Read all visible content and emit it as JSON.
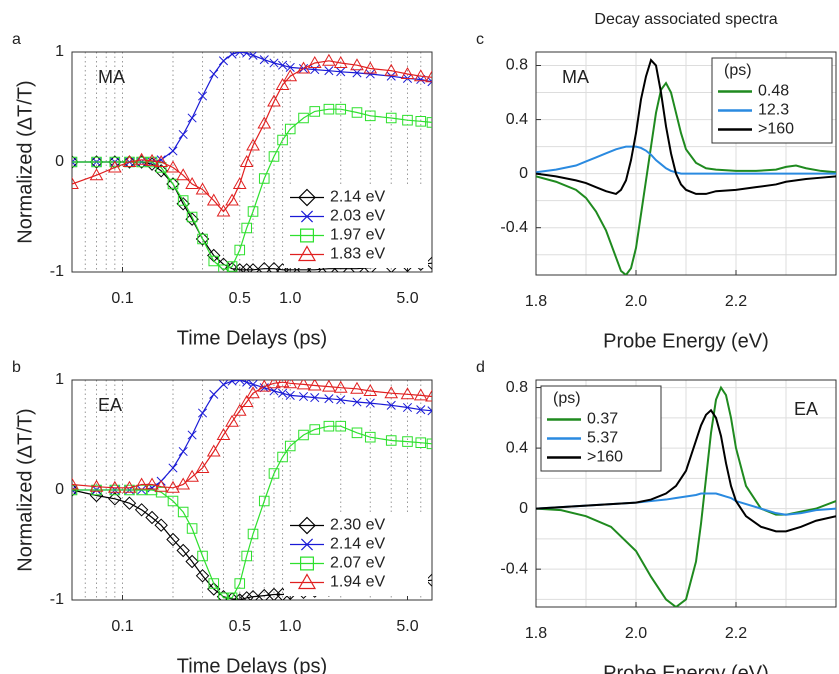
{
  "chart_data": [
    {
      "panel": "a",
      "type": "line",
      "annotation": "MA",
      "xlabel": "Time Delays (ps)",
      "ylabel": "Normalized (ΔT/T)",
      "xscale": "log",
      "xlim": [
        0.05,
        7
      ],
      "ylim": [
        -1,
        1
      ],
      "xticks": [
        0.1,
        0.5,
        {
          "value": 1,
          "label": "1.0"
        },
        {
          "value": 5,
          "label": "5.0"
        }
      ],
      "xminorticks": [
        0.06,
        0.07,
        0.08,
        0.09,
        0.2,
        0.3,
        0.4,
        0.6,
        0.7,
        0.8,
        0.9,
        2,
        3,
        4,
        6,
        7
      ],
      "yticks": [
        -1,
        0,
        1
      ],
      "xgrid": true,
      "ygrid": false,
      "grid_style": "dotted",
      "legend": "lower right",
      "x": [
        0.05,
        0.07,
        0.09,
        0.11,
        0.13,
        0.15,
        0.17,
        0.2,
        0.23,
        0.26,
        0.3,
        0.35,
        0.4,
        0.45,
        0.5,
        0.55,
        0.6,
        0.7,
        0.8,
        0.9,
        1.0,
        1.2,
        1.4,
        1.7,
        2.0,
        2.5,
        3,
        4,
        5,
        6,
        7
      ],
      "series": [
        {
          "name": "2.14 eV",
          "color": "#000000",
          "marker": "diamond",
          "values": [
            0,
            0,
            0,
            0,
            0,
            -0.02,
            -0.08,
            -0.2,
            -0.38,
            -0.52,
            -0.7,
            -0.85,
            -0.93,
            -0.97,
            -0.98,
            -0.98,
            -0.98,
            -0.97,
            -0.97,
            -0.98,
            -0.98,
            -0.98,
            -0.98,
            -0.97,
            -0.97,
            -0.97,
            -0.96,
            -0.95,
            -0.94,
            -0.93,
            -0.92
          ]
        },
        {
          "name": "2.03 eV",
          "color": "#1a1ad6",
          "marker": "x",
          "values": [
            0,
            0,
            0,
            0,
            0,
            0,
            0.02,
            0.1,
            0.25,
            0.4,
            0.6,
            0.8,
            0.92,
            0.98,
            1.0,
            0.99,
            0.97,
            0.93,
            0.9,
            0.88,
            0.86,
            0.85,
            0.84,
            0.83,
            0.82,
            0.81,
            0.8,
            0.78,
            0.76,
            0.75,
            0.73
          ]
        },
        {
          "name": "1.97 eV",
          "color": "#2ee02e",
          "marker": "square",
          "values": [
            0,
            0,
            0,
            0,
            0,
            0,
            -0.05,
            -0.2,
            -0.35,
            -0.5,
            -0.7,
            -0.9,
            -0.98,
            -0.95,
            -0.8,
            -0.6,
            -0.45,
            -0.15,
            0.05,
            0.2,
            0.3,
            0.4,
            0.46,
            0.48,
            0.48,
            0.45,
            0.42,
            0.4,
            0.38,
            0.37,
            0.36
          ]
        },
        {
          "name": "1.83 eV",
          "color": "#e02020",
          "marker": "triangle",
          "values": [
            -0.2,
            -0.12,
            -0.05,
            0,
            0.02,
            0.01,
            0,
            -0.05,
            -0.12,
            -0.2,
            -0.25,
            -0.35,
            -0.45,
            -0.35,
            -0.2,
            0,
            0.15,
            0.35,
            0.55,
            0.7,
            0.78,
            0.85,
            0.9,
            0.92,
            0.9,
            0.88,
            0.85,
            0.83,
            0.8,
            0.78,
            0.77
          ]
        }
      ]
    },
    {
      "panel": "b",
      "type": "line",
      "annotation": "EA",
      "xlabel": "Time Delays (ps)",
      "ylabel": "Normalized (ΔT/T)",
      "xscale": "log",
      "xlim": [
        0.05,
        7
      ],
      "ylim": [
        -1,
        1
      ],
      "xticks": [
        0.1,
        0.5,
        {
          "value": 1,
          "label": "1.0"
        },
        {
          "value": 5,
          "label": "5.0"
        }
      ],
      "xminorticks": [
        0.06,
        0.07,
        0.08,
        0.09,
        0.2,
        0.3,
        0.4,
        0.6,
        0.7,
        0.8,
        0.9,
        2,
        3,
        4,
        6,
        7
      ],
      "yticks": [
        -1,
        0,
        1
      ],
      "xgrid": true,
      "ygrid": false,
      "grid_style": "dotted",
      "legend": "lower right",
      "x": [
        0.05,
        0.07,
        0.09,
        0.11,
        0.13,
        0.15,
        0.17,
        0.2,
        0.23,
        0.26,
        0.3,
        0.35,
        0.4,
        0.45,
        0.5,
        0.55,
        0.6,
        0.7,
        0.8,
        0.9,
        1.0,
        1.2,
        1.4,
        1.7,
        2.0,
        2.5,
        3,
        4,
        5,
        6,
        7
      ],
      "series": [
        {
          "name": "2.30 eV",
          "color": "#000000",
          "marker": "diamond",
          "values": [
            0,
            -0.05,
            -0.08,
            -0.12,
            -0.18,
            -0.25,
            -0.32,
            -0.45,
            -0.55,
            -0.65,
            -0.78,
            -0.9,
            -0.97,
            -0.99,
            -1,
            -0.98,
            -0.97,
            -0.96,
            -0.95,
            -0.95,
            -0.94,
            -0.93,
            -0.92,
            -0.91,
            -0.9,
            -0.89,
            -0.88,
            -0.86,
            -0.84,
            -0.83,
            -0.82
          ]
        },
        {
          "name": "2.14 eV",
          "color": "#1a1ad6",
          "marker": "x",
          "values": [
            0,
            0,
            0,
            0,
            0,
            0.02,
            0.08,
            0.2,
            0.35,
            0.5,
            0.7,
            0.87,
            0.96,
            0.99,
            1,
            0.98,
            0.96,
            0.93,
            0.9,
            0.88,
            0.86,
            0.85,
            0.84,
            0.83,
            0.82,
            0.8,
            0.79,
            0.77,
            0.75,
            0.73,
            0.72
          ]
        },
        {
          "name": "2.07 eV",
          "color": "#2ee02e",
          "marker": "square",
          "values": [
            0,
            0,
            0,
            0,
            0,
            0,
            -0.02,
            -0.1,
            -0.2,
            -0.35,
            -0.6,
            -0.85,
            -0.98,
            -0.98,
            -0.85,
            -0.6,
            -0.4,
            -0.1,
            0.15,
            0.3,
            0.4,
            0.5,
            0.55,
            0.58,
            0.58,
            0.52,
            0.48,
            0.45,
            0.44,
            0.43,
            0.42
          ]
        },
        {
          "name": "1.94 eV",
          "color": "#e02020",
          "marker": "triangle",
          "values": [
            0.05,
            0.03,
            0.02,
            0.02,
            0.05,
            0.05,
            0.03,
            0.02,
            0.05,
            0.12,
            0.2,
            0.35,
            0.5,
            0.62,
            0.72,
            0.8,
            0.88,
            0.94,
            0.97,
            0.98,
            0.97,
            0.96,
            0.95,
            0.94,
            0.93,
            0.92,
            0.9,
            0.88,
            0.87,
            0.86,
            0.85
          ]
        }
      ]
    },
    {
      "panel": "c",
      "type": "line",
      "title": "Decay associated spectra",
      "annotation": "MA",
      "xlabel": "Probe Energy (eV)",
      "xlim": [
        1.8,
        2.4
      ],
      "ylim": [
        -0.75,
        0.9
      ],
      "xticks": [
        1.8,
        {
          "value": 2,
          "label": "2.0"
        },
        2.2
      ],
      "xminorticks": [
        1.9,
        2.1,
        2.3
      ],
      "yticks": [
        -0.4,
        0,
        0.4,
        0.8
      ],
      "yminorticks": [
        -0.6,
        -0.2,
        0.2,
        0.6
      ],
      "xgrid": true,
      "ygrid": true,
      "grid_style": "solid",
      "legend": "upper right",
      "legend_title": "(ps)",
      "x": [
        1.8,
        1.84,
        1.88,
        1.9,
        1.92,
        1.94,
        1.96,
        1.97,
        1.98,
        1.99,
        2.0,
        2.01,
        2.02,
        2.03,
        2.04,
        2.05,
        2.06,
        2.07,
        2.08,
        2.09,
        2.1,
        2.12,
        2.14,
        2.16,
        2.2,
        2.24,
        2.28,
        2.3,
        2.32,
        2.34,
        2.37,
        2.4
      ],
      "series": [
        {
          "name": "0.48",
          "color": "#1f8a1f",
          "values": [
            -0.02,
            -0.06,
            -0.12,
            -0.18,
            -0.28,
            -0.42,
            -0.62,
            -0.72,
            -0.75,
            -0.7,
            -0.55,
            -0.3,
            -0.05,
            0.2,
            0.45,
            0.62,
            0.67,
            0.6,
            0.45,
            0.3,
            0.18,
            0.08,
            0.04,
            0.03,
            0.02,
            0.02,
            0.03,
            0.05,
            0.06,
            0.04,
            0.02,
            0.01
          ]
        },
        {
          "name": "12.3",
          "color": "#2a8ae0",
          "values": [
            0.01,
            0.03,
            0.06,
            0.09,
            0.12,
            0.15,
            0.18,
            0.19,
            0.2,
            0.2,
            0.2,
            0.19,
            0.17,
            0.14,
            0.1,
            0.07,
            0.04,
            0.02,
            0.01,
            0,
            0,
            0,
            0,
            0,
            0,
            0,
            0,
            0,
            0,
            0,
            0,
            0
          ]
        },
        {
          "name": ">160",
          "color": "#000000",
          "values": [
            0,
            -0.02,
            -0.05,
            -0.07,
            -0.1,
            -0.13,
            -0.15,
            -0.12,
            -0.05,
            0.1,
            0.3,
            0.55,
            0.72,
            0.84,
            0.8,
            0.6,
            0.35,
            0.15,
            0,
            -0.08,
            -0.12,
            -0.15,
            -0.15,
            -0.13,
            -0.12,
            -0.1,
            -0.08,
            -0.06,
            -0.05,
            -0.04,
            -0.03,
            -0.02
          ]
        }
      ]
    },
    {
      "panel": "d",
      "type": "line",
      "annotation": "EA",
      "xlabel": "Probe Energy (eV)",
      "xlim": [
        1.8,
        2.4
      ],
      "ylim": [
        -0.65,
        0.85
      ],
      "xticks": [
        1.8,
        {
          "value": 2,
          "label": "2.0"
        },
        2.2
      ],
      "xminorticks": [
        1.9,
        2.1,
        2.3
      ],
      "yticks": [
        -0.4,
        0,
        0.4,
        0.8
      ],
      "yminorticks": [
        -0.6,
        -0.2,
        0.2,
        0.6
      ],
      "xgrid": true,
      "ygrid": true,
      "grid_style": "solid",
      "legend": "upper left",
      "legend_title": "(ps)",
      "x": [
        1.8,
        1.85,
        1.9,
        1.95,
        2.0,
        2.03,
        2.06,
        2.08,
        2.1,
        2.12,
        2.13,
        2.14,
        2.15,
        2.16,
        2.17,
        2.18,
        2.19,
        2.2,
        2.22,
        2.25,
        2.28,
        2.3,
        2.33,
        2.36,
        2.4
      ],
      "series": [
        {
          "name": "0.37",
          "color": "#1f8a1f",
          "values": [
            0,
            -0.01,
            -0.05,
            -0.12,
            -0.28,
            -0.45,
            -0.6,
            -0.65,
            -0.6,
            -0.35,
            -0.1,
            0.2,
            0.5,
            0.72,
            0.8,
            0.75,
            0.6,
            0.4,
            0.15,
            0,
            -0.04,
            -0.04,
            -0.02,
            0,
            0.05
          ]
        },
        {
          "name": "5.37",
          "color": "#2a8ae0",
          "values": [
            0,
            0.01,
            0.02,
            0.03,
            0.04,
            0.05,
            0.06,
            0.07,
            0.08,
            0.09,
            0.1,
            0.1,
            0.1,
            0.1,
            0.09,
            0.08,
            0.07,
            0.05,
            0.03,
            0,
            -0.03,
            -0.04,
            -0.03,
            -0.01,
            0
          ]
        },
        {
          "name": ">160",
          "color": "#000000",
          "values": [
            0,
            0.01,
            0.02,
            0.03,
            0.04,
            0.06,
            0.1,
            0.15,
            0.25,
            0.45,
            0.55,
            0.62,
            0.65,
            0.6,
            0.48,
            0.3,
            0.15,
            0.05,
            -0.05,
            -0.12,
            -0.15,
            -0.15,
            -0.12,
            -0.08,
            -0.05
          ]
        }
      ]
    }
  ]
}
